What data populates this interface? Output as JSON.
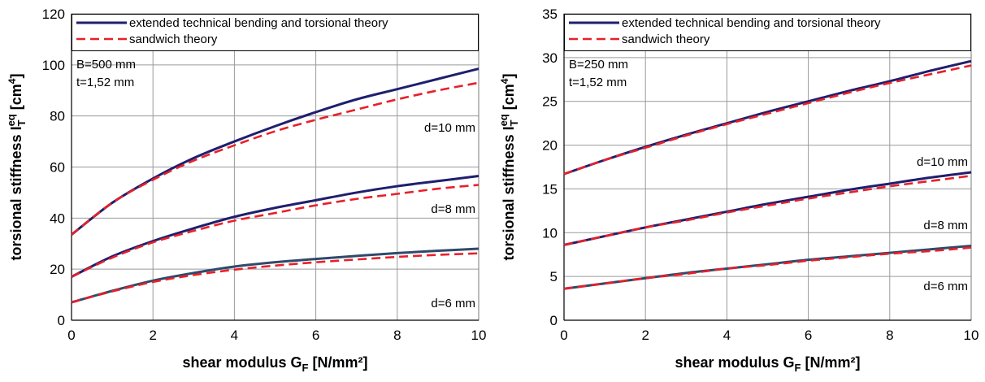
{
  "chart_data": [
    {
      "type": "line",
      "xlabel": "shear modulus G",
      "xlabel_sub": "F",
      "xlabel_unit": " [N/mm²]",
      "ylabel": "torsional stiffness I",
      "ylabel_sub": "T",
      "ylabel_sup_eq": "eq",
      "ylabel_unit": " [cm",
      "ylabel_unit_sup": "4",
      "ylabel_close": "]",
      "xlim": [
        0,
        10
      ],
      "ylim": [
        0,
        120
      ],
      "xticks": [
        0,
        2,
        4,
        6,
        8,
        10
      ],
      "yticks": [
        0,
        20,
        40,
        60,
        80,
        100,
        120
      ],
      "grid": true,
      "legend_position": "top",
      "params": [
        "B=500 mm",
        "t=1,52 mm"
      ],
      "legend": [
        {
          "name": "extended technical bending and torsional theory",
          "color": "#1f1f6e",
          "style": "solid"
        },
        {
          "name": "sandwich theory",
          "color": "#e8202a",
          "style": "dashed"
        }
      ],
      "groups": [
        {
          "label": "d=10 mm",
          "x": [
            0,
            1,
            2,
            3,
            4,
            5,
            6,
            7,
            8,
            9,
            10
          ],
          "series": [
            {
              "name": "extended technical bending and torsional theory",
              "color": "#1f1f6e",
              "values": [
                33.5,
                46,
                55.5,
                63.5,
                70,
                76,
                81.5,
                86.5,
                90.5,
                94.5,
                98.5
              ]
            },
            {
              "name": "sandwich theory",
              "color": "#e8202a",
              "values": [
                33.5,
                46,
                55,
                62.5,
                68.5,
                74,
                78.5,
                82.5,
                86.5,
                90,
                93
              ]
            }
          ]
        },
        {
          "label": "d=8 mm",
          "x": [
            0,
            1,
            2,
            3,
            4,
            5,
            6,
            7,
            8,
            9,
            10
          ],
          "series": [
            {
              "name": "extended technical bending and torsional theory",
              "color": "#1f1f6e",
              "values": [
                17,
                25,
                31,
                36,
                40.5,
                44,
                47,
                50,
                52.5,
                54.5,
                56.5
              ]
            },
            {
              "name": "sandwich theory",
              "color": "#e8202a",
              "values": [
                17,
                24.5,
                30.5,
                35,
                39,
                42,
                45,
                47.5,
                49.5,
                51.5,
                53
              ]
            }
          ]
        },
        {
          "label": "d=6 mm",
          "x": [
            0,
            1,
            2,
            3,
            4,
            5,
            6,
            7,
            8,
            9,
            10
          ],
          "series": [
            {
              "name": "extended technical bending and torsional theory",
              "color": "#2e4a6b",
              "values": [
                7,
                11.5,
                15.5,
                18.5,
                21,
                22.7,
                24,
                25.2,
                26.3,
                27.2,
                28
              ]
            },
            {
              "name": "sandwich theory",
              "color": "#e8202a",
              "values": [
                7,
                11.3,
                15,
                17.7,
                19.8,
                21.4,
                22.7,
                23.8,
                24.8,
                25.6,
                26.2
              ]
            }
          ]
        }
      ]
    },
    {
      "type": "line",
      "xlabel": "shear modulus G",
      "xlabel_sub": "F",
      "xlabel_unit": " [N/mm²]",
      "ylabel": "torsional stiffness I",
      "ylabel_sub": "T",
      "ylabel_sup_eq": "eq",
      "ylabel_unit": " [cm",
      "ylabel_unit_sup": "4",
      "ylabel_close": "]",
      "xlim": [
        0,
        10
      ],
      "ylim": [
        0,
        35
      ],
      "xticks": [
        0,
        2,
        4,
        6,
        8,
        10
      ],
      "yticks": [
        0,
        5,
        10,
        15,
        20,
        25,
        30,
        35
      ],
      "grid": true,
      "legend_position": "top",
      "params": [
        "B=250 mm",
        "t=1,52 mm"
      ],
      "legend": [
        {
          "name": "extended technical bending and torsional theory",
          "color": "#1f1f6e",
          "style": "solid"
        },
        {
          "name": "sandwich theory",
          "color": "#e8202a",
          "style": "dashed"
        }
      ],
      "groups": [
        {
          "label": "d=10 mm",
          "x": [
            0,
            1,
            2,
            3,
            4,
            5,
            6,
            7,
            8,
            9,
            10
          ],
          "series": [
            {
              "name": "extended technical bending and torsional theory",
              "color": "#1f1f6e",
              "values": [
                16.7,
                18.3,
                19.8,
                21.2,
                22.5,
                23.8,
                25,
                26.2,
                27.3,
                28.5,
                29.6
              ]
            },
            {
              "name": "sandwich theory",
              "color": "#e8202a",
              "values": [
                16.7,
                18.3,
                19.7,
                21.1,
                22.4,
                23.6,
                24.8,
                26,
                27.1,
                28.1,
                29.1
              ]
            }
          ]
        },
        {
          "label": "d=8 mm",
          "x": [
            0,
            1,
            2,
            3,
            4,
            5,
            6,
            7,
            8,
            9,
            10
          ],
          "series": [
            {
              "name": "extended technical bending and torsional theory",
              "color": "#1f1f6e",
              "values": [
                8.6,
                9.6,
                10.6,
                11.5,
                12.4,
                13.3,
                14.1,
                14.9,
                15.6,
                16.3,
                16.9
              ]
            },
            {
              "name": "sandwich theory",
              "color": "#e8202a",
              "values": [
                8.6,
                9.6,
                10.6,
                11.4,
                12.3,
                13.1,
                13.9,
                14.6,
                15.3,
                15.9,
                16.5
              ]
            }
          ]
        },
        {
          "label": "d=6 mm",
          "x": [
            0,
            1,
            2,
            3,
            4,
            5,
            6,
            7,
            8,
            9,
            10
          ],
          "series": [
            {
              "name": "extended technical bending and torsional theory",
              "color": "#2e4a6b",
              "values": [
                3.6,
                4.2,
                4.8,
                5.4,
                5.9,
                6.4,
                6.9,
                7.3,
                7.7,
                8.1,
                8.5
              ]
            },
            {
              "name": "sandwich theory",
              "color": "#e8202a",
              "values": [
                3.6,
                4.2,
                4.8,
                5.3,
                5.9,
                6.3,
                6.8,
                7.2,
                7.6,
                7.9,
                8.3
              ]
            }
          ]
        }
      ]
    }
  ]
}
